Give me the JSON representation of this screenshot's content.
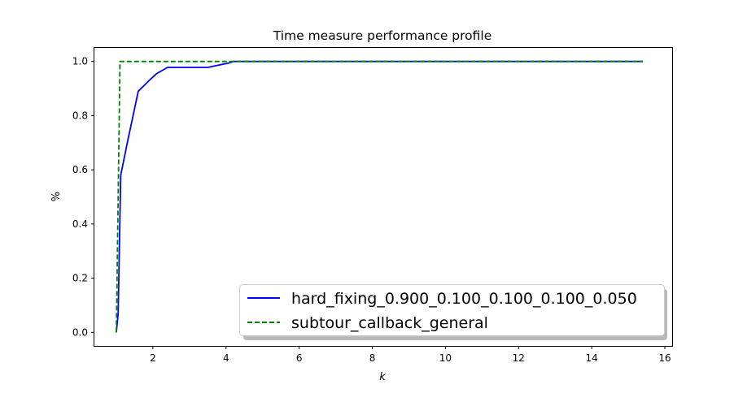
{
  "chart_data": {
    "type": "line",
    "title": "Time measure performance profile",
    "xlabel": "k",
    "ylabel": "%",
    "xlim": [
      0.4,
      16.2
    ],
    "ylim": [
      -0.05,
      1.05
    ],
    "xticks": [
      2,
      4,
      6,
      8,
      10,
      12,
      14,
      16
    ],
    "yticks": [
      0.0,
      0.2,
      0.4,
      0.6,
      0.8,
      1.0
    ],
    "xtick_labels": [
      "2",
      "4",
      "6",
      "8",
      "10",
      "12",
      "14",
      "16"
    ],
    "ytick_labels": [
      "0.0",
      "0.2",
      "0.4",
      "0.6",
      "0.8",
      "1.0"
    ],
    "grid": false,
    "legend_position": "lower-right",
    "series": [
      {
        "name": "hard_fixing_0.900_0.100_0.100_0.100_0.050",
        "color": "#0000ff",
        "style": "solid",
        "x": [
          1.0,
          1.05,
          1.12,
          1.3,
          1.6,
          1.9,
          2.1,
          2.4,
          3.5,
          4.1,
          4.2,
          15.4
        ],
        "y": [
          0.0,
          0.07,
          0.58,
          0.7,
          0.89,
          0.93,
          0.955,
          0.978,
          0.978,
          0.995,
          1.0,
          1.0
        ]
      },
      {
        "name": "subtour_callback_general",
        "color": "#008000",
        "style": "dashed",
        "x": [
          1.0,
          1.1,
          15.4
        ],
        "y": [
          0.0,
          1.0,
          1.0
        ]
      }
    ]
  }
}
